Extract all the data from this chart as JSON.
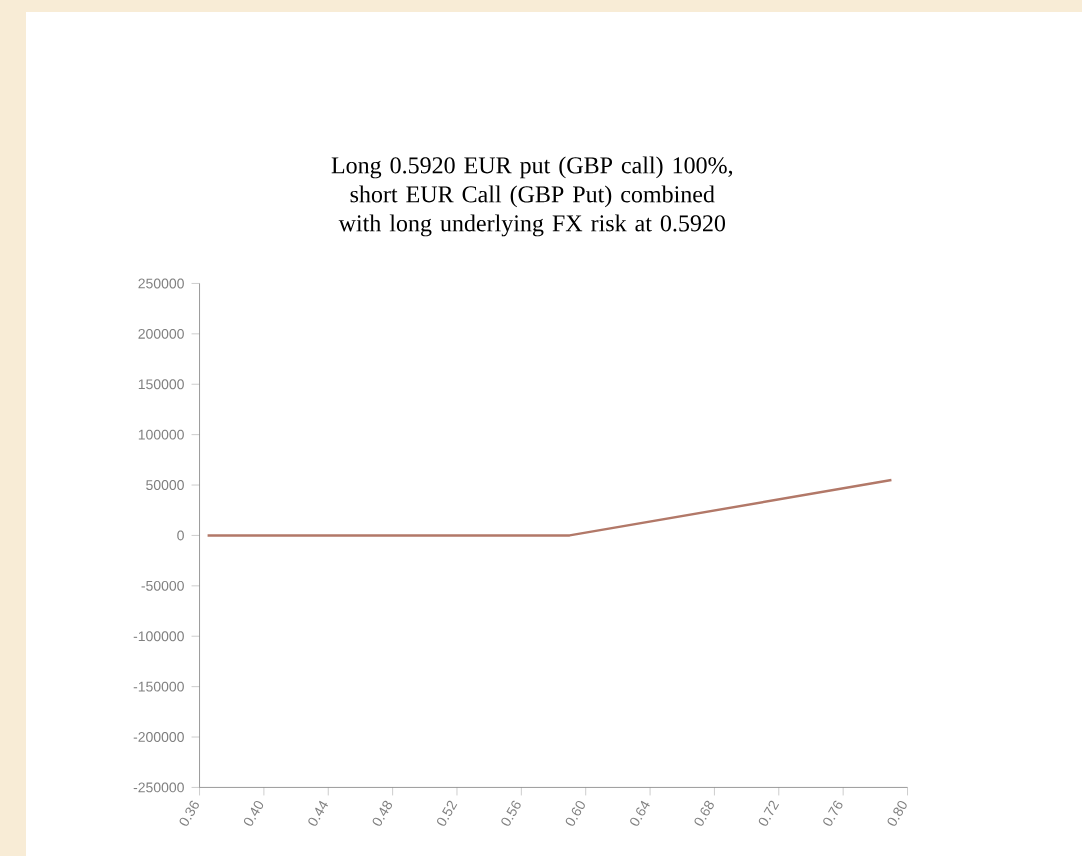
{
  "chart_data": {
    "type": "line",
    "title": "Long 0.5920 EUR put (GBP call) 100%, short EUR Call (GBP Put) combined with long underlying FX risk at 0.5920",
    "x": [
      0.365,
      0.59,
      0.79
    ],
    "values": [
      0,
      0,
      55000
    ],
    "color": "#b27868",
    "xlim": [
      0.36,
      0.8
    ],
    "ylim": [
      -250000,
      250000
    ],
    "xticks": [
      {
        "value": 0.36,
        "label": "0.36"
      },
      {
        "value": 0.4,
        "label": "0.40"
      },
      {
        "value": 0.44,
        "label": "0.44"
      },
      {
        "value": 0.48,
        "label": "0.48"
      },
      {
        "value": 0.52,
        "label": "0.52"
      },
      {
        "value": 0.56,
        "label": "0.56"
      },
      {
        "value": 0.6,
        "label": "0.60"
      },
      {
        "value": 0.64,
        "label": "0.64"
      },
      {
        "value": 0.68,
        "label": "0.68"
      },
      {
        "value": 0.72,
        "label": "0.72"
      },
      {
        "value": 0.76,
        "label": "0.76"
      },
      {
        "value": 0.8,
        "label": "0.80"
      }
    ],
    "yticks": [
      -250000,
      -200000,
      -150000,
      -100000,
      -50000,
      0,
      50000,
      100000,
      150000,
      200000,
      250000
    ]
  }
}
